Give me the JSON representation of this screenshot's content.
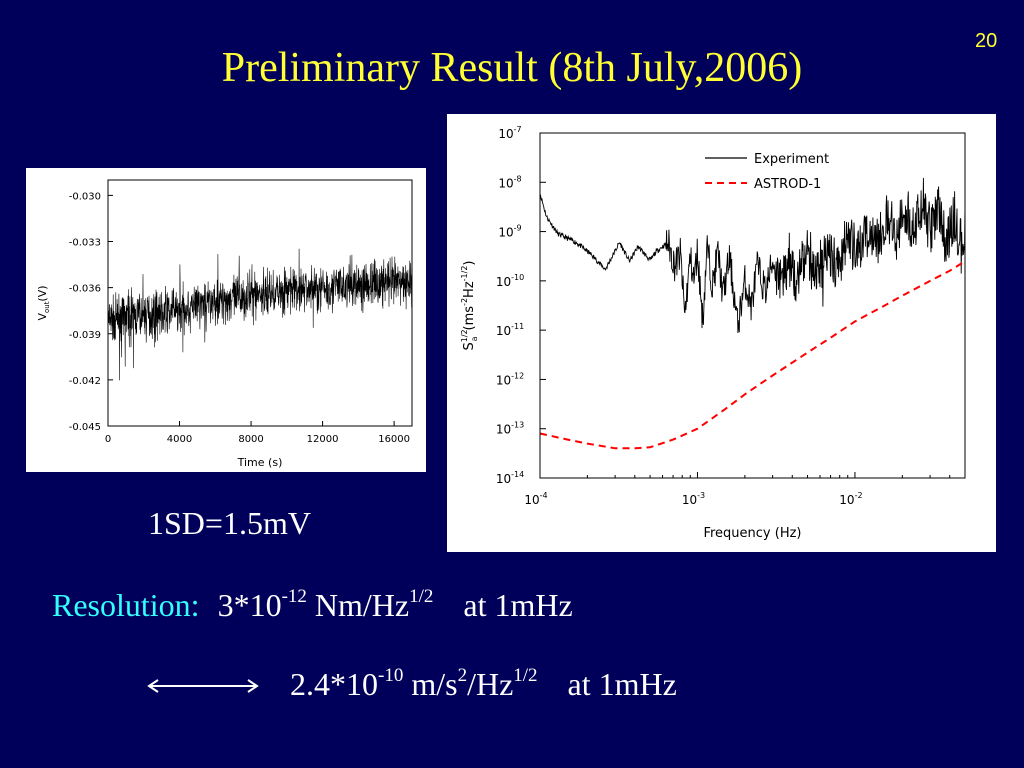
{
  "slide": {
    "number": "20",
    "title": "Preliminary Result (8th July,2006)",
    "sd_label": "1SD=1.5mV",
    "resolution_label": "Resolution:",
    "resolution_mantissa": "3*10",
    "resolution_exp": "-12",
    "resolution_unit": "Nm/Hz",
    "resolution_unit_exp": "1/2",
    "resolution_at": "at 1mHz",
    "accel_mantissa": "2.4*10",
    "accel_exp": "-10",
    "accel_unit_a": "m/s",
    "accel_unit_a_exp": "2",
    "accel_unit_b": "/Hz",
    "accel_unit_b_exp": "1/2",
    "accel_at": "at 1mHz",
    "arrow_icon": "double-headed-arrow-icon",
    "colors": {
      "background": "#00005a",
      "title": "#ffff33",
      "label": "#33ffff",
      "text": "#ffffff"
    }
  },
  "chart_data": [
    {
      "type": "line",
      "xlabel": "Time (s)",
      "ylabel_main": "V",
      "ylabel_sub": "out",
      "ylabel_unit": "(V)",
      "xlim": [
        0,
        17000
      ],
      "ylim": [
        -0.045,
        -0.029
      ],
      "x_ticks": [
        0,
        4000,
        8000,
        12000,
        16000
      ],
      "x_tick_labels": [
        "0",
        "4000",
        "8000",
        "12000",
        "16000"
      ],
      "y_ticks": [
        -0.03,
        -0.033,
        -0.036,
        -0.039,
        -0.042,
        -0.045
      ],
      "y_tick_labels": [
        "-0.030",
        "-0.033",
        "-0.036",
        "-0.039",
        "-0.042",
        "-0.045"
      ],
      "series": [
        {
          "color": "#000000",
          "x": [
            0,
            2000,
            4000,
            6000,
            8000,
            10000,
            12000,
            14000,
            16000,
            17000
          ],
          "y_center": [
            -0.0382,
            -0.0378,
            -0.0374,
            -0.0369,
            -0.0365,
            -0.0362,
            -0.036,
            -0.0358,
            -0.0357,
            -0.0357
          ],
          "y_spread": 0.0022
        }
      ]
    },
    {
      "type": "line",
      "scale": "log-log",
      "xlabel": "Frequency (Hz)",
      "ylabel_main": "S",
      "ylabel_sup": "1/2",
      "ylabel_sub": "a",
      "ylabel_unit": "(ms",
      "ylabel_unit_sup": "-2",
      "ylabel_unit_b": "Hz",
      "ylabel_unit_b_sup": "-1/2",
      "ylabel_unit_end": ")",
      "xlim": [
        0.0001,
        0.05
      ],
      "ylim": [
        1e-14,
        1e-07
      ],
      "x_tick_labels": [
        {
          "mantissa": "10",
          "exp": "-4",
          "value": 0.0001
        },
        {
          "mantissa": "10",
          "exp": "-3",
          "value": 0.001
        },
        {
          "mantissa": "10",
          "exp": "-2",
          "value": 0.01
        }
      ],
      "y_tick_labels": [
        {
          "mantissa": "10",
          "exp": "-7",
          "value": 1e-07
        },
        {
          "mantissa": "10",
          "exp": "-8",
          "value": 1e-08
        },
        {
          "mantissa": "10",
          "exp": "-9",
          "value": 1e-09
        },
        {
          "mantissa": "10",
          "exp": "-10",
          "value": 1e-10
        },
        {
          "mantissa": "10",
          "exp": "-11",
          "value": 1e-11
        },
        {
          "mantissa": "10",
          "exp": "-12",
          "value": 1e-12
        },
        {
          "mantissa": "10",
          "exp": "-13",
          "value": 1e-13
        },
        {
          "mantissa": "10",
          "exp": "-14",
          "value": 1e-14
        }
      ],
      "legend_position": "top-right",
      "series": [
        {
          "name": "Experiment",
          "color": "#000000",
          "dash": "solid",
          "x": [
            0.0001,
            0.00011,
            0.00013,
            0.00017,
            0.00021,
            0.00026,
            0.00032,
            0.00037,
            0.00042,
            0.0005,
            0.00055,
            0.00065,
            0.00072,
            0.00078,
            0.00083,
            0.0009,
            0.00095,
            0.001,
            0.00108,
            0.00115,
            0.00125,
            0.00135,
            0.00145,
            0.0016,
            0.0018,
            0.002,
            0.0022,
            0.0024,
            0.0027,
            0.003,
            0.0034,
            0.0038,
            0.0043,
            0.005,
            0.0058,
            0.0067,
            0.0078,
            0.009,
            0.0105,
            0.012,
            0.014,
            0.016,
            0.018,
            0.021,
            0.024,
            0.027,
            0.03,
            0.034,
            0.038,
            0.043,
            0.048,
            0.05
          ],
          "y": [
            6e-09,
            2e-09,
            9e-10,
            6e-10,
            3.5e-10,
            1.7e-10,
            6e-10,
            2.5e-10,
            5e-10,
            2.6e-10,
            4e-10,
            6e-10,
            2e-10,
            3.5e-10,
            2e-11,
            3e-10,
            1e-10,
            4e-10,
            1.5e-11,
            5e-10,
            8e-11,
            4e-10,
            5e-11,
            3e-10,
            1.2e-11,
            1e-10,
            3e-11,
            2e-10,
            6e-11,
            2.5e-10,
            8e-11,
            3e-10,
            1e-10,
            4e-10,
            1.5e-10,
            5e-10,
            2e-10,
            8e-10,
            3e-10,
            1.5e-09,
            6e-10,
            2e-09,
            8e-10,
            3e-09,
            1e-09,
            4e-09,
            1e-09,
            3e-09,
            6e-10,
            2e-09,
            4e-10,
            1e-09
          ]
        },
        {
          "name": "ASTROD-1",
          "color": "#ff0000",
          "dash": "dashed",
          "x": [
            0.0001,
            0.00015,
            0.0002,
            0.0003,
            0.0004,
            0.0005,
            0.0007,
            0.001,
            0.0015,
            0.002,
            0.003,
            0.005,
            0.007,
            0.01,
            0.015,
            0.02,
            0.03,
            0.04,
            0.05
          ],
          "y": [
            8e-14,
            6e-14,
            5e-14,
            4e-14,
            4e-14,
            4.2e-14,
            6e-14,
            1e-13,
            2.5e-13,
            5e-13,
            1.2e-12,
            3.5e-12,
            7e-12,
            1.5e-11,
            3e-11,
            5e-11,
            1e-10,
            1.6e-10,
            2.5e-10
          ]
        }
      ]
    }
  ]
}
